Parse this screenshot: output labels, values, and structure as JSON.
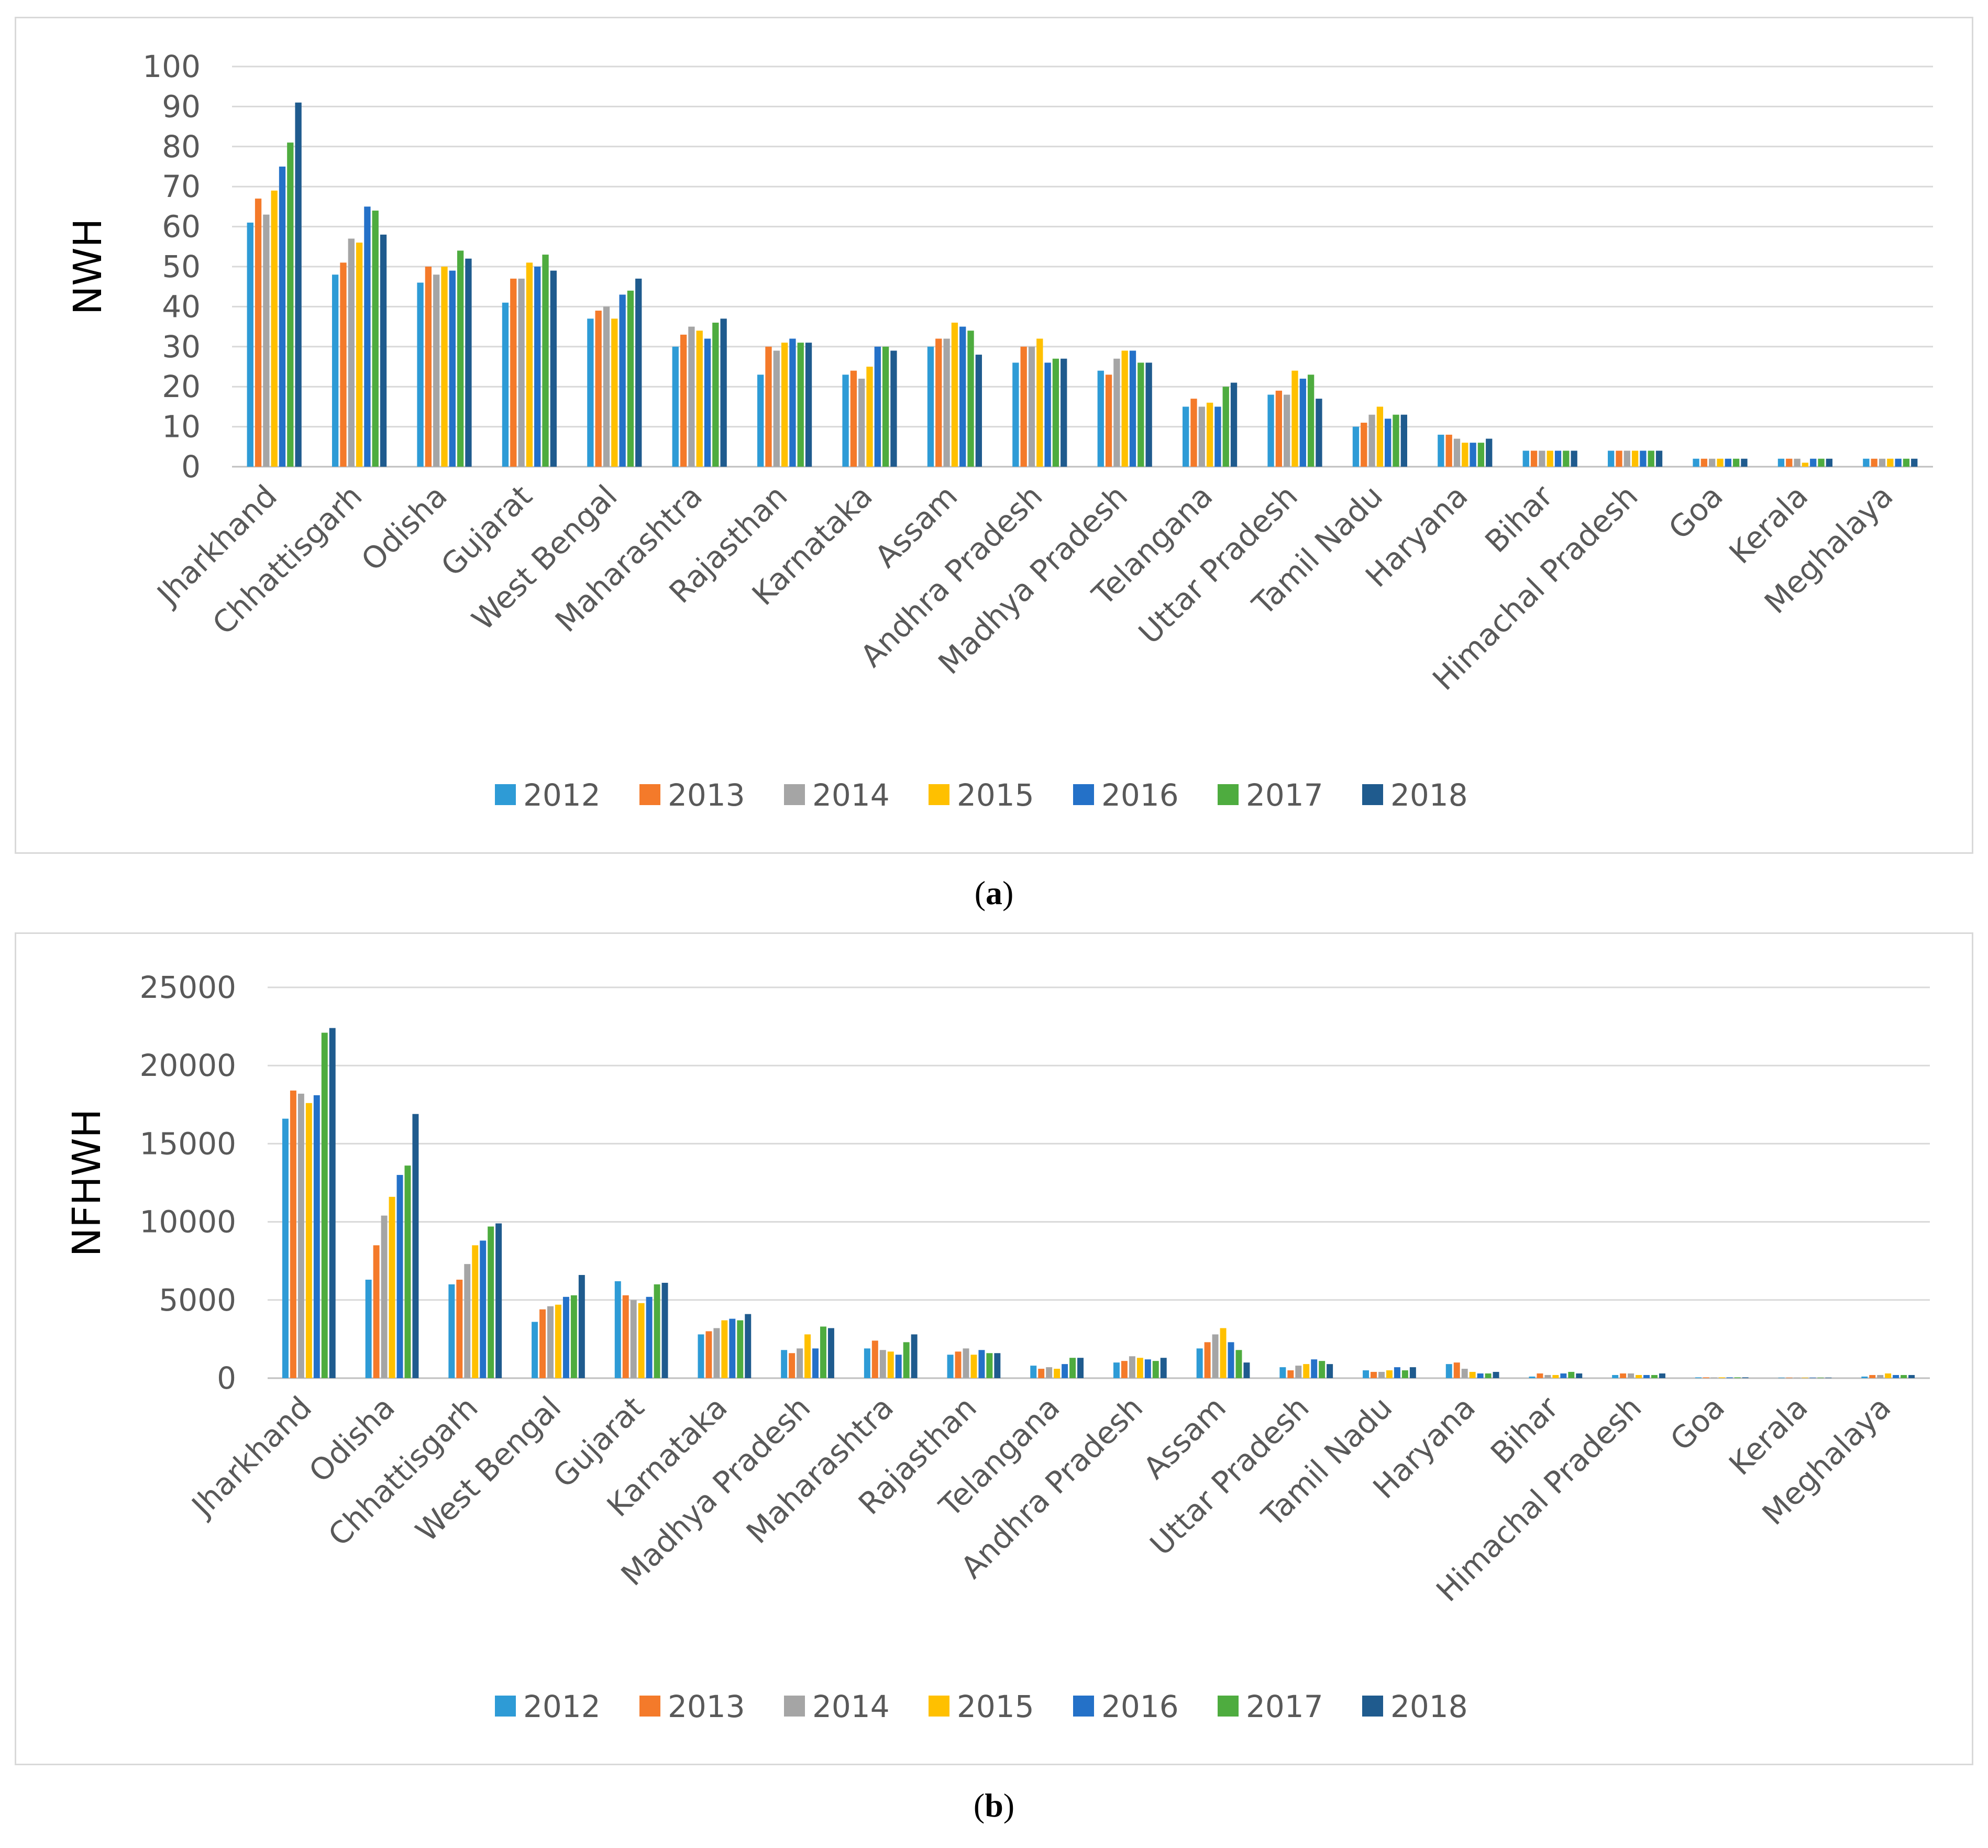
{
  "chart_data": [
    {
      "type": "bar",
      "ylabel": "NWH",
      "caption": "a",
      "ylim": [
        0,
        100
      ],
      "yticks": [
        0,
        10,
        20,
        30,
        40,
        50,
        60,
        70,
        80,
        90,
        100
      ],
      "grid": true,
      "legend": "bottom",
      "categories": [
        "Jharkhand",
        "Chhattisgarh",
        "Odisha",
        "Gujarat",
        "West Bengal",
        "Maharashtra",
        "Rajasthan",
        "Karnataka",
        "Assam",
        "Andhra Pradesh",
        "Madhya Pradesh",
        "Telangana",
        "Uttar Pradesh",
        "Tamil Nadu",
        "Haryana",
        "Bihar",
        "Himachal Pradesh",
        "Goa",
        "Kerala",
        "Meghalaya"
      ],
      "series": [
        {
          "name": "2012",
          "color": "#2E9BD6",
          "values": [
            61,
            48,
            46,
            41,
            37,
            30,
            23,
            23,
            30,
            26,
            24,
            15,
            18,
            10,
            8,
            4,
            4,
            2,
            2,
            2
          ]
        },
        {
          "name": "2013",
          "color": "#F47A2A",
          "values": [
            67,
            51,
            50,
            47,
            39,
            33,
            30,
            24,
            32,
            30,
            23,
            17,
            19,
            11,
            8,
            4,
            4,
            2,
            2,
            2
          ]
        },
        {
          "name": "2014",
          "color": "#A5A5A5",
          "values": [
            63,
            57,
            48,
            47,
            40,
            35,
            29,
            22,
            32,
            30,
            27,
            15,
            18,
            13,
            7,
            4,
            4,
            2,
            2,
            2
          ]
        },
        {
          "name": "2015",
          "color": "#FFC000",
          "values": [
            69,
            56,
            50,
            51,
            37,
            34,
            31,
            25,
            36,
            32,
            29,
            16,
            24,
            15,
            6,
            4,
            4,
            2,
            1,
            2
          ]
        },
        {
          "name": "2016",
          "color": "#2471C8",
          "values": [
            75,
            65,
            49,
            50,
            43,
            32,
            32,
            30,
            35,
            26,
            29,
            15,
            22,
            12,
            6,
            4,
            4,
            2,
            2,
            2
          ]
        },
        {
          "name": "2017",
          "color": "#4EAC3F",
          "values": [
            81,
            64,
            54,
            53,
            44,
            36,
            31,
            30,
            34,
            27,
            26,
            20,
            23,
            13,
            6,
            4,
            4,
            2,
            2,
            2
          ]
        },
        {
          "name": "2018",
          "color": "#1F5B8E",
          "values": [
            91,
            58,
            52,
            49,
            47,
            37,
            31,
            29,
            28,
            27,
            26,
            21,
            17,
            13,
            7,
            4,
            4,
            2,
            2,
            2
          ]
        }
      ]
    },
    {
      "type": "bar",
      "ylabel": "NFHWH",
      "caption": "b",
      "ylim": [
        0,
        25000
      ],
      "yticks": [
        0,
        5000,
        10000,
        15000,
        20000,
        25000
      ],
      "grid": true,
      "legend": "bottom",
      "categories": [
        "Jharkhand",
        "Odisha",
        "Chhattisgarh",
        "West Bengal",
        "Gujarat",
        "Karnataka",
        "Madhya Pradesh",
        "Maharashtra",
        "Rajasthan",
        "Telangana",
        "Andhra Pradesh",
        "Assam",
        "Uttar Pradesh",
        "Tamil Nadu",
        "Haryana",
        "Bihar",
        "Himachal Pradesh",
        "Goa",
        "Kerala",
        "Meghalaya"
      ],
      "series": [
        {
          "name": "2012",
          "color": "#2E9BD6",
          "values": [
            16600,
            6300,
            6000,
            3600,
            6200,
            2800,
            1800,
            1900,
            1500,
            800,
            1000,
            1900,
            700,
            500,
            900,
            100,
            200,
            50,
            30,
            100
          ]
        },
        {
          "name": "2013",
          "color": "#F47A2A",
          "values": [
            18400,
            8500,
            6300,
            4400,
            5300,
            3000,
            1600,
            2400,
            1700,
            600,
            1100,
            2300,
            500,
            400,
            1000,
            300,
            300,
            50,
            30,
            200
          ]
        },
        {
          "name": "2014",
          "color": "#A5A5A5",
          "values": [
            18200,
            10400,
            7300,
            4600,
            5000,
            3200,
            1900,
            1800,
            1900,
            700,
            1400,
            2800,
            800,
            400,
            600,
            200,
            300,
            50,
            30,
            200
          ]
        },
        {
          "name": "2015",
          "color": "#FFC000",
          "values": [
            17600,
            11600,
            8500,
            4700,
            4800,
            3700,
            2800,
            1700,
            1500,
            600,
            1300,
            3200,
            900,
            500,
            400,
            200,
            200,
            50,
            30,
            300
          ]
        },
        {
          "name": "2016",
          "color": "#2471C8",
          "values": [
            18100,
            13000,
            8800,
            5200,
            5200,
            3800,
            1900,
            1500,
            1800,
            900,
            1200,
            2300,
            1200,
            700,
            300,
            300,
            200,
            50,
            30,
            200
          ]
        },
        {
          "name": "2017",
          "color": "#4EAC3F",
          "values": [
            22100,
            13600,
            9700,
            5300,
            6000,
            3700,
            3300,
            2300,
            1600,
            1300,
            1100,
            1800,
            1100,
            500,
            300,
            400,
            200,
            50,
            30,
            200
          ]
        },
        {
          "name": "2018",
          "color": "#1F5B8E",
          "values": [
            22400,
            16900,
            9900,
            6600,
            6100,
            4100,
            3200,
            2800,
            1600,
            1300,
            1300,
            1000,
            900,
            700,
            400,
            300,
            300,
            50,
            30,
            200
          ]
        }
      ]
    }
  ]
}
